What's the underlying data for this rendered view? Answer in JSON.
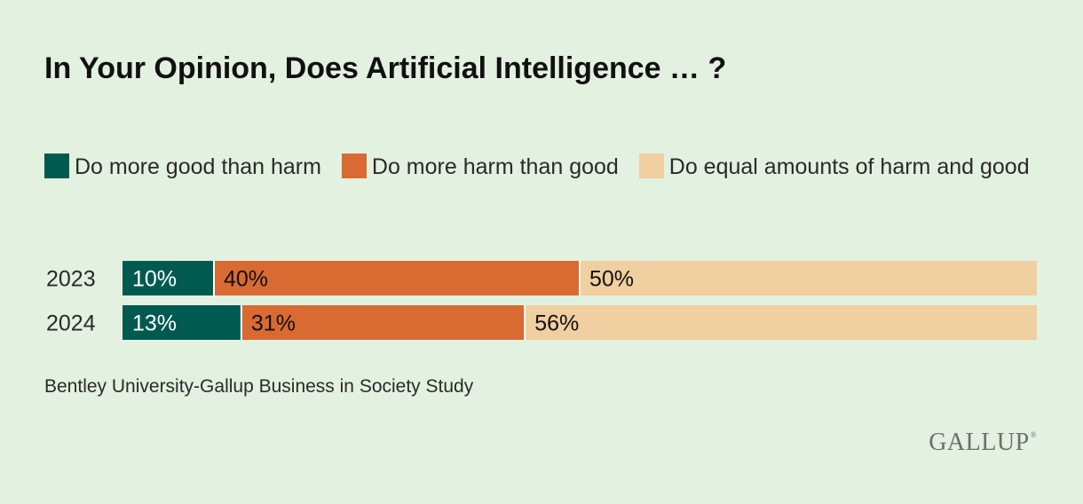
{
  "chart_data": {
    "type": "bar",
    "orientation": "horizontal",
    "stacked": true,
    "title": "In Your Opinion, Does Artificial Intelligence … ?",
    "categories": [
      "2023",
      "2024"
    ],
    "series": [
      {
        "name": "Do more good than harm",
        "values": [
          10,
          13
        ],
        "labels": [
          "10%",
          "13%"
        ],
        "color": "#005a50"
      },
      {
        "name": "Do more harm than good",
        "values": [
          40,
          31
        ],
        "labels": [
          "40%",
          "31%"
        ],
        "color": "#d96a32"
      },
      {
        "name": "Do equal amounts of harm and good",
        "values": [
          50,
          56
        ],
        "labels": [
          "50%",
          "56%"
        ],
        "color": "#f0cfa0"
      }
    ],
    "xlim": [
      0,
      100
    ],
    "xlabel": "",
    "ylabel": "",
    "legend_position": "top",
    "source": "Bentley University-Gallup Business in Society Study"
  },
  "logo": {
    "text": "GALLUP",
    "mark": "®"
  }
}
